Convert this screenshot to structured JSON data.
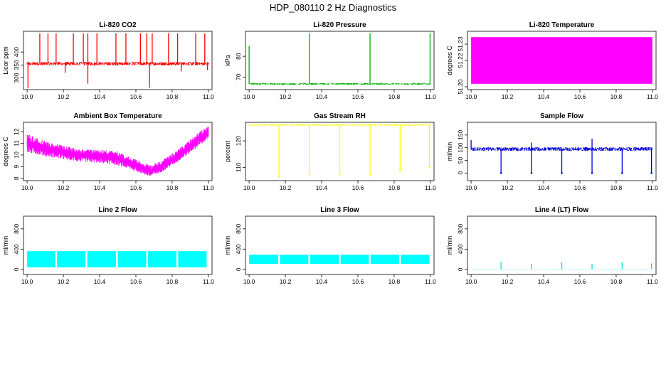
{
  "page_title": "HDP_080110  2 Hz Diagnostics",
  "chart_data": [
    {
      "type": "line",
      "title": "Li-820 CO2",
      "ylabel": "Licor ppm",
      "color": "#ff0000",
      "xlim": [
        9.98,
        11.02
      ],
      "ylim": [
        255,
        480
      ],
      "x_ticks": [
        "10.0",
        "10.2",
        "10.4",
        "10.6",
        "10.8",
        "11.0"
      ],
      "y_ticks": [
        300,
        350,
        400
      ],
      "baseline": 355,
      "band": [
        348,
        362
      ],
      "spikes": [
        {
          "x": 10.07,
          "y": 472
        },
        {
          "x": 10.115,
          "y": 472
        },
        {
          "x": 10.16,
          "y": 472
        },
        {
          "x": 10.255,
          "y": 472
        },
        {
          "x": 10.31,
          "y": 472
        },
        {
          "x": 10.335,
          "y": 472
        },
        {
          "x": 10.385,
          "y": 472
        },
        {
          "x": 10.49,
          "y": 472
        },
        {
          "x": 10.545,
          "y": 472
        },
        {
          "x": 10.625,
          "y": 472
        },
        {
          "x": 10.66,
          "y": 472
        },
        {
          "x": 10.69,
          "y": 472
        },
        {
          "x": 10.78,
          "y": 472
        },
        {
          "x": 10.83,
          "y": 472
        },
        {
          "x": 10.93,
          "y": 472
        },
        {
          "x": 10.98,
          "y": 472
        },
        {
          "x": 10.005,
          "y": 260
        },
        {
          "x": 10.21,
          "y": 320
        },
        {
          "x": 10.335,
          "y": 278
        },
        {
          "x": 10.675,
          "y": 262
        },
        {
          "x": 10.85,
          "y": 325
        },
        {
          "x": 10.995,
          "y": 330
        }
      ]
    },
    {
      "type": "line",
      "title": "Li-820 Pressure",
      "ylabel": "kPa",
      "color": "#00b000",
      "xlim": [
        9.98,
        11.02
      ],
      "ylim": [
        64,
        92
      ],
      "x_ticks": [
        "10.0",
        "10.2",
        "10.4",
        "10.6",
        "10.8",
        "11.0"
      ],
      "y_ticks": [
        70,
        80
      ],
      "baseline": 66.7,
      "band": [
        66.3,
        67.2
      ],
      "spikes": [
        {
          "x": 10.0,
          "y": 85
        },
        {
          "x": 10.333,
          "y": 91
        },
        {
          "x": 10.667,
          "y": 91
        },
        {
          "x": 10.998,
          "y": 91
        }
      ]
    },
    {
      "type": "area",
      "title": "Li-820 Temperature",
      "ylabel": "degrees C",
      "color": "#ff00ff",
      "xlim": [
        9.98,
        11.02
      ],
      "ylim": [
        51.195,
        51.245
      ],
      "x_ticks": [
        "10.0",
        "10.2",
        "10.4",
        "10.6",
        "10.8",
        "11.0"
      ],
      "y_ticks": [
        "51.20",
        "51.22",
        "51.23"
      ],
      "band": [
        51.2,
        51.24
      ]
    },
    {
      "type": "line",
      "title": "Ambient Box Temperature",
      "ylabel": "degrees C",
      "color": "#ff00ff",
      "xlim": [
        9.98,
        11.02
      ],
      "ylim": [
        7.8,
        12.8
      ],
      "x_ticks": [
        "10.0",
        "10.2",
        "10.4",
        "10.6",
        "10.8",
        "11.0"
      ],
      "y_ticks": [
        8,
        9,
        10,
        11,
        12
      ],
      "trend": [
        {
          "x": 10.0,
          "lo": 10.2,
          "hi": 11.8
        },
        {
          "x": 10.1,
          "lo": 9.9,
          "hi": 11.2
        },
        {
          "x": 10.2,
          "lo": 9.6,
          "hi": 10.8
        },
        {
          "x": 10.3,
          "lo": 9.4,
          "hi": 10.5
        },
        {
          "x": 10.4,
          "lo": 9.3,
          "hi": 10.5
        },
        {
          "x": 10.5,
          "lo": 9.1,
          "hi": 10.3
        },
        {
          "x": 10.6,
          "lo": 8.6,
          "hi": 9.6
        },
        {
          "x": 10.68,
          "lo": 8.1,
          "hi": 9.1
        },
        {
          "x": 10.75,
          "lo": 8.6,
          "hi": 9.6
        },
        {
          "x": 10.85,
          "lo": 9.6,
          "hi": 10.7
        },
        {
          "x": 10.95,
          "lo": 10.8,
          "hi": 12.0
        },
        {
          "x": 11.0,
          "lo": 11.3,
          "hi": 12.5
        }
      ]
    },
    {
      "type": "line",
      "title": "Gas Stream RH",
      "ylabel": "percent",
      "color": "#ffff00",
      "xlim": [
        9.98,
        11.02
      ],
      "ylim": [
        105,
        127
      ],
      "x_ticks": [
        "10.0",
        "10.2",
        "10.4",
        "10.6",
        "10.8",
        "11.0"
      ],
      "y_ticks": [
        110,
        120
      ],
      "baseline": 126,
      "band": [
        125.7,
        126.3
      ],
      "dips": [
        {
          "x": 10.165,
          "y": 106.5
        },
        {
          "x": 10.333,
          "y": 107.5
        },
        {
          "x": 10.5,
          "y": 107.5
        },
        {
          "x": 10.667,
          "y": 107
        },
        {
          "x": 10.833,
          "y": 109
        },
        {
          "x": 10.995,
          "y": 110
        }
      ]
    },
    {
      "type": "line",
      "title": "Sample Flow",
      "ylabel": "ml/min",
      "color": "#0000dd",
      "xlim": [
        9.98,
        11.02
      ],
      "ylim": [
        -30,
        200
      ],
      "x_ticks": [
        "10.0",
        "10.2",
        "10.4",
        "10.6",
        "10.8",
        "11.0"
      ],
      "y_ticks": [
        0,
        50,
        100,
        150
      ],
      "baseline": 95,
      "band": [
        87,
        102
      ],
      "dips": [
        {
          "x": 10.165,
          "y": 0
        },
        {
          "x": 10.333,
          "y": 0
        },
        {
          "x": 10.5,
          "y": 0
        },
        {
          "x": 10.667,
          "y": 0
        },
        {
          "x": 10.833,
          "y": 0
        },
        {
          "x": 10.995,
          "y": 0
        }
      ],
      "spikes": [
        {
          "x": 10.0,
          "y": 130
        },
        {
          "x": 10.333,
          "y": 120
        },
        {
          "x": 10.667,
          "y": 135
        }
      ]
    },
    {
      "type": "area",
      "title": "Line 2 Flow",
      "ylabel": "ml/min",
      "color": "#00ffff",
      "xlim": [
        9.98,
        11.02
      ],
      "ylim": [
        -100,
        1050
      ],
      "x_ticks": [
        "10.0",
        "10.2",
        "10.4",
        "10.6",
        "10.8",
        "11.0"
      ],
      "y_ticks": [
        0,
        400,
        800
      ],
      "segments": [
        {
          "x0": 10.0,
          "x1": 10.155,
          "lo": 40,
          "hi": 360
        },
        {
          "x0": 10.165,
          "x1": 10.322,
          "lo": 40,
          "hi": 360
        },
        {
          "x0": 10.332,
          "x1": 10.49,
          "lo": 40,
          "hi": 360
        },
        {
          "x0": 10.5,
          "x1": 10.657,
          "lo": 40,
          "hi": 360
        },
        {
          "x0": 10.667,
          "x1": 10.823,
          "lo": 40,
          "hi": 360
        },
        {
          "x0": 10.833,
          "x1": 10.99,
          "lo": 40,
          "hi": 360
        }
      ]
    },
    {
      "type": "area",
      "title": "Line 3 Flow",
      "ylabel": "ml/min",
      "color": "#00ffff",
      "xlim": [
        9.98,
        11.02
      ],
      "ylim": [
        -100,
        1050
      ],
      "x_ticks": [
        "10.0",
        "10.2",
        "10.4",
        "10.6",
        "10.8",
        "11.0"
      ],
      "y_ticks": [
        0,
        400,
        800
      ],
      "segments": [
        {
          "x0": 10.0,
          "x1": 10.16,
          "lo": 110,
          "hi": 290
        },
        {
          "x0": 10.17,
          "x1": 10.327,
          "lo": 110,
          "hi": 290
        },
        {
          "x0": 10.337,
          "x1": 10.495,
          "lo": 110,
          "hi": 290
        },
        {
          "x0": 10.505,
          "x1": 10.66,
          "lo": 110,
          "hi": 290
        },
        {
          "x0": 10.67,
          "x1": 10.827,
          "lo": 110,
          "hi": 290
        },
        {
          "x0": 10.837,
          "x1": 10.995,
          "lo": 110,
          "hi": 290
        }
      ]
    },
    {
      "type": "line",
      "title": "Line 4 (LT) Flow",
      "ylabel": "ml/min",
      "color": "#00dddd",
      "xlim": [
        9.98,
        11.02
      ],
      "ylim": [
        -100,
        1050
      ],
      "x_ticks": [
        "10.0",
        "10.2",
        "10.4",
        "10.6",
        "10.8",
        "11.0"
      ],
      "y_ticks": [
        0,
        400,
        800
      ],
      "baseline": 5,
      "band": [
        2,
        8
      ],
      "spikes": [
        {
          "x": 10.165,
          "y": 150
        },
        {
          "x": 10.333,
          "y": 110
        },
        {
          "x": 10.5,
          "y": 140
        },
        {
          "x": 10.667,
          "y": 110
        },
        {
          "x": 10.833,
          "y": 140
        },
        {
          "x": 10.995,
          "y": 120
        }
      ]
    }
  ]
}
